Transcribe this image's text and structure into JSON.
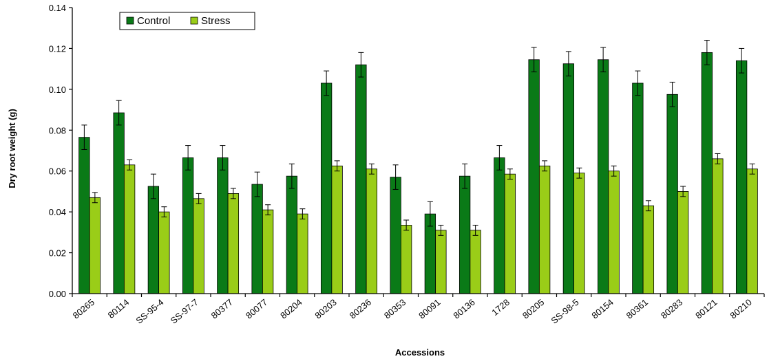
{
  "chart_data": {
    "type": "bar",
    "title": "",
    "xlabel": "Accessions",
    "ylabel": "Dry root weight (g)",
    "ylim": [
      0,
      0.14
    ],
    "yticks": [
      "0.00",
      "0.02",
      "0.04",
      "0.06",
      "0.08",
      "0.10",
      "0.12",
      "0.14"
    ],
    "ytick_values": [
      0,
      0.02,
      0.04,
      0.06,
      0.08,
      0.1,
      0.12,
      0.14
    ],
    "grid": false,
    "legend_position": "top-left",
    "error_bars": true,
    "categories": [
      "80265",
      "80114",
      "SS-95-4",
      "SS-97-7",
      "80377",
      "80077",
      "80204",
      "80203",
      "80236",
      "80353",
      "80091",
      "80136",
      "1728",
      "80205",
      "SS-98-5",
      "80154",
      "80361",
      "80283",
      "80121",
      "80210"
    ],
    "series": [
      {
        "name": "Control",
        "color": "#0a7a17",
        "values": [
          0.0765,
          0.0885,
          0.0525,
          0.0665,
          0.0665,
          0.0535,
          0.0575,
          0.103,
          0.112,
          0.057,
          0.039,
          0.0575,
          0.0665,
          0.1145,
          0.1125,
          0.1145,
          0.103,
          0.0975,
          0.118,
          0.114
        ],
        "errors": [
          0.006,
          0.006,
          0.006,
          0.006,
          0.006,
          0.006,
          0.006,
          0.006,
          0.006,
          0.006,
          0.006,
          0.006,
          0.006,
          0.006,
          0.006,
          0.006,
          0.006,
          0.006,
          0.006,
          0.006
        ]
      },
      {
        "name": "Stress",
        "color": "#9acd18",
        "values": [
          0.047,
          0.063,
          0.04,
          0.0465,
          0.049,
          0.041,
          0.039,
          0.0625,
          0.061,
          0.0335,
          0.031,
          0.031,
          0.0585,
          0.0625,
          0.059,
          0.06,
          0.043,
          0.05,
          0.066,
          0.061
        ],
        "errors": [
          0.0025,
          0.0025,
          0.0025,
          0.0025,
          0.0025,
          0.0025,
          0.0025,
          0.0025,
          0.0025,
          0.0025,
          0.0025,
          0.0025,
          0.0025,
          0.0025,
          0.0025,
          0.0025,
          0.0025,
          0.0025,
          0.0025,
          0.0025
        ]
      }
    ]
  }
}
